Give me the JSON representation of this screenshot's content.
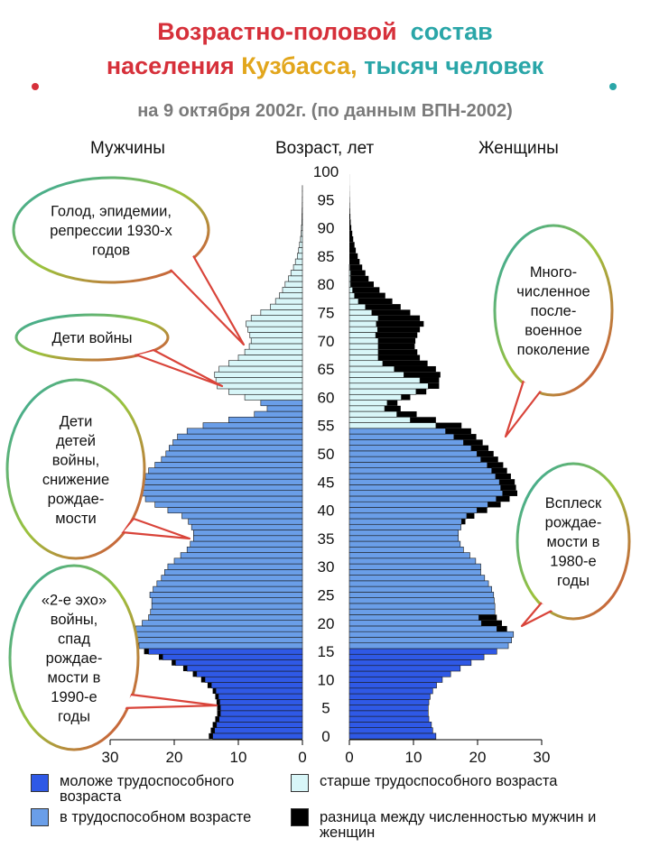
{
  "title": {
    "line1_part1": "Возрастно-половой",
    "line1_part2": "состав",
    "line2_part1": "населения",
    "line2_part2": "Кузбасса,",
    "line2_part3": "тысяч человек"
  },
  "subtitle": "на 9 октября 2002г. (по данным ВПН-2002)",
  "headers": {
    "men": "Мужчины",
    "age": "Возраст, лет",
    "women": "Женщины"
  },
  "colors": {
    "young": "#2f59e6",
    "working": "#6a9ee8",
    "old": "#d8f6f8",
    "diff": "#000000",
    "title_red": "#d6303a",
    "title_teal": "#2aa6a8"
  },
  "callouts": {
    "famine": "Голод, эпидемии, репрессии 1930-х годов",
    "war_children": "Дети войны",
    "war_grandchildren": "Дети детей войны, снижение рождае-мости",
    "echo2": "«2-е эхо» войны, спад рождае-мости в 1990-е годы",
    "postwar": "Много-численное после-военное поколение",
    "boom80": "Всплеск рождае-мости в 1980-е годы"
  },
  "legend": {
    "young": "моложе трудоспособного возраста",
    "working": "в трудоспособном возрасте",
    "old": "старше трудоспособного возраста",
    "diff": "разница между численностью мужчин и женщин"
  },
  "chart_data": {
    "type": "bar",
    "orientation": "horizontal-pyramid",
    "x_unit": "тысяч человек",
    "xlim": [
      0,
      30
    ],
    "x_ticks": [
      0,
      10,
      20,
      30
    ],
    "age_ticks": [
      0,
      5,
      10,
      15,
      20,
      25,
      30,
      35,
      40,
      45,
      50,
      55,
      60,
      65,
      70,
      75,
      80,
      85,
      90,
      95,
      100
    ],
    "ages": [
      0,
      1,
      2,
      3,
      4,
      5,
      6,
      7,
      8,
      9,
      10,
      11,
      12,
      13,
      14,
      15,
      16,
      17,
      18,
      19,
      20,
      21,
      22,
      23,
      24,
      25,
      26,
      27,
      28,
      29,
      30,
      31,
      32,
      33,
      34,
      35,
      36,
      37,
      38,
      39,
      40,
      41,
      42,
      43,
      44,
      45,
      46,
      47,
      48,
      49,
      50,
      51,
      52,
      53,
      54,
      55,
      56,
      57,
      58,
      59,
      60,
      61,
      62,
      63,
      64,
      65,
      66,
      67,
      68,
      69,
      70,
      71,
      72,
      73,
      74,
      75,
      76,
      77,
      78,
      79,
      80,
      81,
      82,
      83,
      84,
      85,
      86,
      87,
      88,
      89,
      90,
      91,
      92,
      93,
      94,
      95,
      96,
      97,
      98,
      99,
      100
    ],
    "men": [
      14,
      13.7,
      13.4,
      13,
      12.8,
      12.8,
      12.9,
      13.1,
      13.5,
      14.2,
      15.2,
      16.5,
      18,
      19.8,
      21.8,
      24,
      25.5,
      26,
      26.5,
      26,
      25,
      24,
      23.7,
      23.5,
      23.5,
      23.8,
      23.3,
      22.7,
      22,
      21.5,
      21,
      20,
      19,
      18,
      17.5,
      17,
      17,
      17.3,
      17.8,
      18.8,
      21,
      23,
      24.5,
      26,
      25.5,
      25,
      24.5,
      24,
      23,
      22,
      21.3,
      20.8,
      20.2,
      19.5,
      18,
      15.5,
      11.5,
      7.5,
      5.5,
      6.5,
      9,
      11.5,
      13.3,
      13.5,
      13.7,
      13,
      11.5,
      10,
      9,
      8.3,
      8,
      8.2,
      8.5,
      8.8,
      8,
      6.5,
      5,
      4.2,
      3.6,
      3.1,
      2.7,
      2.2,
      1.8,
      1.4,
      1.1,
      0.8,
      0.6,
      0.45,
      0.3,
      0.2,
      0.15,
      0.1,
      0.07,
      0.05,
      0.03,
      0.02,
      0.01,
      0.01,
      0,
      0,
      0
    ],
    "women": [
      13.5,
      13,
      12.8,
      12.4,
      12.3,
      12.3,
      12.4,
      12.6,
      13,
      13.6,
      14.5,
      15.8,
      17.3,
      19,
      21,
      23,
      24.8,
      25.3,
      25.6,
      24.6,
      23.8,
      23,
      22.7,
      22.7,
      22.6,
      22.5,
      22.2,
      21.7,
      21.1,
      20.5,
      20.5,
      19.7,
      18.8,
      17.8,
      17.3,
      17,
      17,
      17.4,
      18.1,
      19.5,
      21.5,
      23.6,
      25,
      26.2,
      26,
      25.8,
      25.2,
      24.6,
      24,
      23.2,
      22.5,
      21.7,
      20.8,
      19.8,
      19,
      17.5,
      13.5,
      10.5,
      8,
      7.5,
      9.5,
      12,
      14,
      14,
      14.2,
      13.5,
      12.2,
      11,
      10.6,
      10.2,
      10.3,
      10.6,
      11,
      11.6,
      11,
      9.5,
      8,
      6.7,
      5.6,
      4.7,
      3.8,
      3,
      2.5,
      2,
      1.6,
      1.3,
      1,
      0.8,
      0.6,
      0.45,
      0.3,
      0.2,
      0.15,
      0.1,
      0.07,
      0.05,
      0.03,
      0.02,
      0.01,
      0.01,
      0
    ],
    "diff_men_excess": [
      0.6,
      0.6,
      0.6,
      0.6,
      0.5,
      0.5,
      0.5,
      0.5,
      0.5,
      0.6,
      0.6,
      0.6,
      0.6,
      0.6,
      0.6,
      0.7,
      0.7,
      0.7,
      0.8,
      0,
      0,
      0,
      0,
      0,
      0,
      0,
      0,
      0,
      0,
      0,
      0,
      0,
      0,
      0,
      0,
      0,
      0,
      0,
      0,
      0,
      0,
      0,
      0,
      0,
      0,
      0,
      0,
      0,
      0,
      0,
      0,
      0,
      0,
      0,
      0,
      0,
      0,
      0,
      0,
      0,
      0,
      0,
      0,
      0,
      0,
      0,
      0,
      0,
      0,
      0,
      0,
      0,
      0,
      0,
      0,
      0,
      0,
      0,
      0,
      0,
      0,
      0,
      0,
      0,
      0,
      0,
      0,
      0,
      0,
      0,
      0,
      0,
      0,
      0,
      0,
      0,
      0,
      0,
      0,
      0,
      0
    ],
    "diff_women_excess": [
      0,
      0,
      0,
      0,
      0,
      0,
      0,
      0,
      0,
      0,
      0,
      0,
      0,
      0,
      0,
      0,
      0,
      0,
      0,
      1.6,
      3.2,
      2.8,
      0,
      0,
      0,
      0,
      0,
      0,
      0,
      0,
      0,
      0,
      0,
      0,
      0,
      0,
      0,
      0,
      0.6,
      1.2,
      1.6,
      2,
      2.1,
      2.3,
      2.4,
      2.4,
      2.4,
      2.4,
      2.5,
      2.7,
      2.6,
      2.7,
      3,
      3.5,
      4,
      4,
      4,
      3.1,
      2.5,
      1.6,
      1.4,
      1.6,
      1.7,
      3,
      5.7,
      6.5,
      7,
      6.5,
      6.1,
      5.7,
      5.8,
      6.5,
      6.6,
      7.4,
      6.5,
      6,
      5.5,
      5.3,
      4.8,
      4.2,
      3.6,
      2.8,
      2.3,
      1.9,
      1.6,
      1.3,
      1.2,
      1,
      0.8,
      0.6,
      0.45,
      0.3,
      0.2,
      0.15,
      0.1,
      0.07,
      0.05,
      0.03,
      0.02,
      0.01,
      0
    ],
    "retirement_age_men": 60,
    "retirement_age_women": 55,
    "working_age_start": 16
  }
}
